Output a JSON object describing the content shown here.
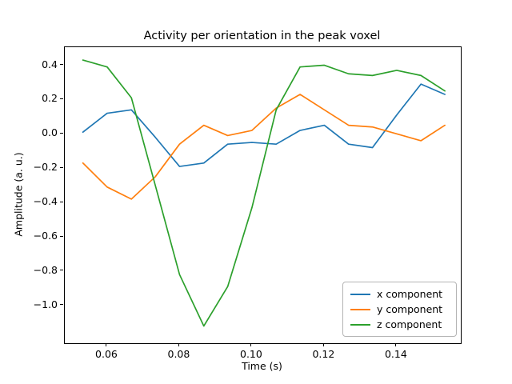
{
  "chart_data": {
    "type": "line",
    "title": "Activity per orientation in the peak voxel",
    "xlabel": "Time (s)",
    "ylabel": "Amplitude (a. u.)",
    "x": [
      0.0533,
      0.06,
      0.0667,
      0.0733,
      0.08,
      0.0867,
      0.0933,
      0.1,
      0.1067,
      0.1133,
      0.12,
      0.1267,
      0.1333,
      0.14,
      0.1467,
      0.1533
    ],
    "series": [
      {
        "name": "x component",
        "color": "#1f77b4",
        "values": [
          0.01,
          0.12,
          0.14,
          -0.02,
          -0.19,
          -0.17,
          -0.06,
          -0.05,
          -0.06,
          0.02,
          0.05,
          -0.06,
          -0.08,
          0.11,
          0.29,
          0.23
        ]
      },
      {
        "name": "y component",
        "color": "#ff7f0e",
        "values": [
          -0.17,
          -0.31,
          -0.38,
          -0.25,
          -0.06,
          0.05,
          -0.01,
          0.02,
          0.15,
          0.23,
          0.14,
          0.05,
          0.04,
          0.0,
          -0.04,
          0.05
        ]
      },
      {
        "name": "z component",
        "color": "#2ca02c",
        "values": [
          0.43,
          0.39,
          0.21,
          -0.3,
          -0.82,
          -1.12,
          -0.89,
          -0.43,
          0.14,
          0.39,
          0.4,
          0.35,
          0.34,
          0.37,
          0.34,
          0.25
        ]
      }
    ],
    "xlim": [
      0.0483,
      0.1577
    ],
    "ylim": [
      -1.22,
      0.505
    ],
    "xticks": {
      "values": [
        0.06,
        0.08,
        0.1,
        0.12,
        0.14
      ],
      "labels": [
        "0.06",
        "0.08",
        "0.10",
        "0.12",
        "0.14"
      ]
    },
    "yticks": {
      "values": [
        0.4,
        0.2,
        0.0,
        -0.2,
        -0.4,
        -0.6,
        -0.8,
        -1.0
      ],
      "labels": [
        "0.4",
        "0.2",
        "0.0",
        "−0.2",
        "−0.4",
        "−0.6",
        "−0.8",
        "−1.0"
      ]
    },
    "grid": false,
    "legend": {
      "position": "lower right",
      "entries": [
        "x component",
        "y component",
        "z component"
      ]
    }
  }
}
